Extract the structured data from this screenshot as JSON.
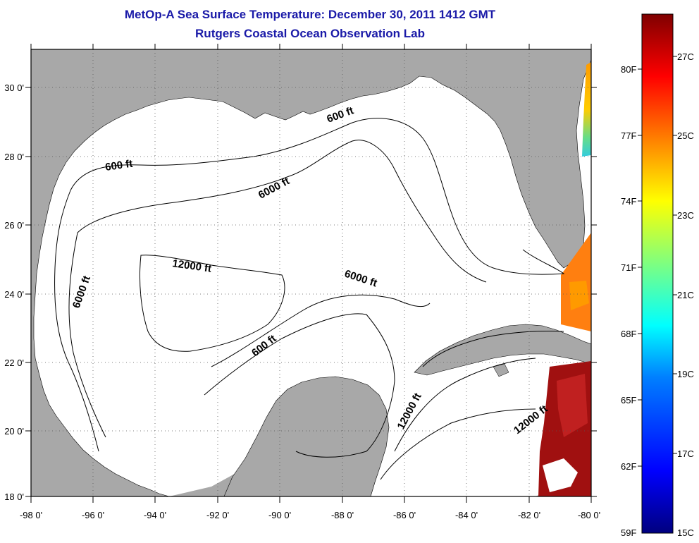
{
  "title": {
    "line1": "MetOp-A Sea Surface Temperature:  December 30, 2011 1412 GMT",
    "line2": "Rutgers Coastal Ocean Observation Lab"
  },
  "map": {
    "lon_range": [
      -98,
      -80
    ],
    "lat_range": [
      18,
      31
    ],
    "x_ticks": [
      "-98 0'",
      "-96 0'",
      "-94 0'",
      "-92 0'",
      "-90 0'",
      "-88 0'",
      "-86 0'",
      "-84 0'",
      "-82 0'",
      "-80 0'"
    ],
    "y_ticks": [
      "18 0'",
      "20 0'",
      "22 0'",
      "24 0'",
      "26 0'",
      "28 0'",
      "30 0'"
    ],
    "grid": "dotted",
    "land_color": "#a8a8a8",
    "contour_labels": [
      "600 ft",
      "6000 ft",
      "12000 ft",
      "6000 ft",
      "600 ft",
      "6000 ft",
      "600 ft",
      "12000 ft",
      "12000 ft"
    ]
  },
  "colorbar": {
    "f_labels": [
      "80F",
      "77F",
      "74F",
      "71F",
      "68F",
      "65F",
      "62F",
      "59F"
    ],
    "c_labels": [
      "27C",
      "25C",
      "23C",
      "21C",
      "19C",
      "17C",
      "15C"
    ],
    "colors": [
      "#00007f",
      "#0000ff",
      "#007fff",
      "#00ffff",
      "#7fff7f",
      "#ffff00",
      "#ff7f00",
      "#ff0000",
      "#7f0000"
    ]
  }
}
